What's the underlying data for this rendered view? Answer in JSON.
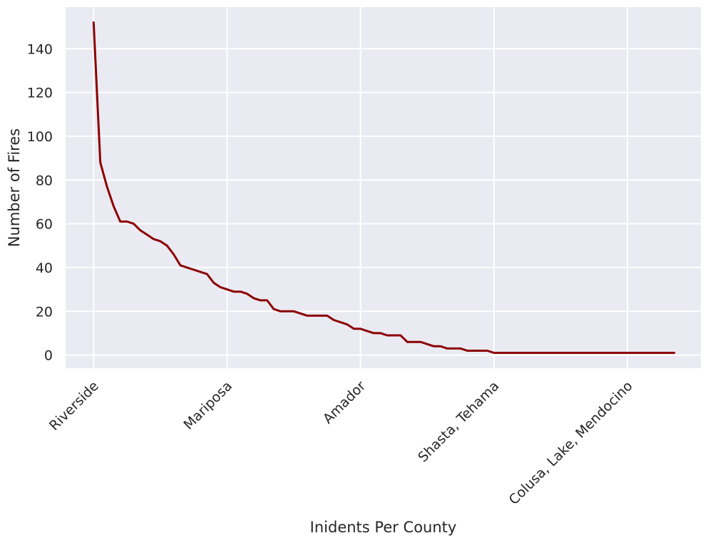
{
  "chart_data": {
    "type": "line",
    "title": "",
    "xlabel": "Inidents Per County",
    "ylabel": "Number of Fires",
    "x_tick_labels": [
      "Riverside",
      "Mariposa",
      "Amador",
      "Shasta, Tehama",
      "Colusa, Lake, Mendocino"
    ],
    "x_tick_positions": [
      0,
      20,
      40,
      60,
      80
    ],
    "y_ticks": [
      0,
      20,
      40,
      60,
      80,
      100,
      120,
      140
    ],
    "xlim": [
      -4.2,
      91
    ],
    "ylim": [
      -6,
      159
    ],
    "grid": true,
    "series": [
      {
        "color": "#8b0000",
        "x": [
          0,
          1,
          2,
          3,
          4,
          5,
          6,
          7,
          8,
          9,
          10,
          11,
          12,
          13,
          14,
          15,
          16,
          17,
          18,
          19,
          20,
          21,
          22,
          23,
          24,
          25,
          26,
          27,
          28,
          29,
          30,
          31,
          32,
          33,
          34,
          35,
          36,
          37,
          38,
          39,
          40,
          41,
          42,
          43,
          44,
          45,
          46,
          47,
          48,
          49,
          50,
          51,
          52,
          53,
          54,
          55,
          56,
          57,
          58,
          59,
          60,
          61,
          62,
          63,
          64,
          65,
          66,
          67,
          68,
          69,
          70,
          71,
          72,
          73,
          74,
          75,
          76,
          77,
          78,
          79,
          80,
          81,
          82,
          83,
          84,
          85,
          86,
          87
        ],
        "values": [
          152,
          88,
          77,
          68,
          61,
          61,
          60,
          57,
          55,
          53,
          52,
          50,
          46,
          41,
          40,
          39,
          38,
          37,
          33,
          31,
          30,
          29,
          29,
          28,
          26,
          25,
          25,
          21,
          20,
          20,
          20,
          19,
          18,
          18,
          18,
          18,
          16,
          15,
          14,
          12,
          12,
          11,
          10,
          10,
          9,
          9,
          9,
          6,
          6,
          6,
          5,
          4,
          4,
          3,
          3,
          3,
          2,
          2,
          2,
          2,
          1,
          1,
          1,
          1,
          1,
          1,
          1,
          1,
          1,
          1,
          1,
          1,
          1,
          1,
          1,
          1,
          1,
          1,
          1,
          1,
          1,
          1,
          1,
          1,
          1,
          1,
          1,
          1
        ]
      }
    ]
  },
  "colors": {
    "plot_background": "#eaeaf2",
    "grid": "#ffffff",
    "line": "#8b0000",
    "text": "#262626"
  }
}
